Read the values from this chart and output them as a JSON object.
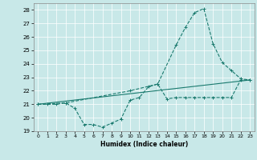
{
  "bg_color": "#c8e8e8",
  "line_color": "#1a7a6e",
  "xlabel": "Humidex (Indice chaleur)",
  "xlim": [
    -0.5,
    23.5
  ],
  "ylim": [
    19,
    28.5
  ],
  "yticks": [
    19,
    20,
    21,
    22,
    23,
    24,
    25,
    26,
    27,
    28
  ],
  "xticks": [
    0,
    1,
    2,
    3,
    4,
    5,
    6,
    7,
    8,
    9,
    10,
    11,
    12,
    13,
    14,
    15,
    16,
    17,
    18,
    19,
    20,
    21,
    22,
    23
  ],
  "line1_x": [
    0,
    1,
    2,
    3,
    4,
    5,
    6,
    7,
    8,
    9,
    10,
    11,
    12,
    13,
    14,
    15,
    16,
    17,
    18,
    19,
    20,
    21,
    22,
    23
  ],
  "line1_y": [
    21.0,
    21.0,
    21.0,
    21.1,
    20.7,
    19.5,
    19.5,
    19.3,
    19.6,
    19.9,
    21.3,
    21.5,
    22.3,
    22.5,
    21.4,
    21.5,
    21.5,
    21.5,
    21.5,
    21.5,
    21.5,
    21.5,
    22.8,
    22.8
  ],
  "line2_x": [
    0,
    3,
    10,
    13,
    15,
    16,
    17,
    18,
    19,
    20,
    21,
    22,
    23
  ],
  "line2_y": [
    21.0,
    21.1,
    22.0,
    22.5,
    25.4,
    26.7,
    27.8,
    28.1,
    25.5,
    24.1,
    23.5,
    22.9,
    22.8
  ],
  "line3_x": [
    0,
    23
  ],
  "line3_y": [
    21.0,
    22.8
  ],
  "xlabel_fontsize": 5.5,
  "tick_fontsize": 5.0,
  "xtick_fontsize": 4.5,
  "grid_color": "#aad8d8",
  "spine_color": "#888888"
}
